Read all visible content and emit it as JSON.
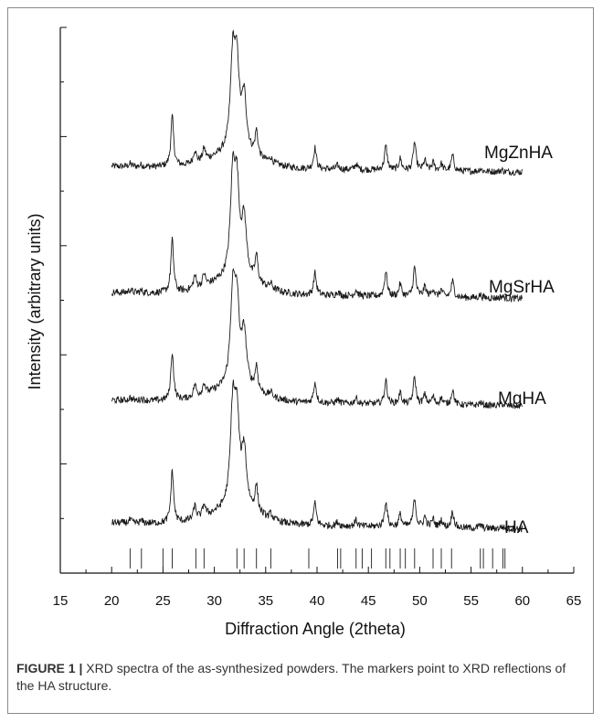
{
  "chart_data": {
    "type": "line",
    "xlabel": "Diffraction Angle (2theta)",
    "ylabel": "Intensity (arbitrary units)",
    "xlim": [
      15,
      65
    ],
    "x_ticks": [
      "15",
      "20",
      "25",
      "30",
      "35",
      "40",
      "45",
      "50",
      "55",
      "60",
      "65"
    ],
    "y_scale": "arbitrary",
    "x_range_data": [
      20,
      60
    ],
    "peaks": [
      {
        "x": 21.8,
        "h": 0.3
      },
      {
        "x": 22.9,
        "h": 0.2
      },
      {
        "x": 25.9,
        "h": 5.2
      },
      {
        "x": 28.1,
        "h": 1.3
      },
      {
        "x": 29.0,
        "h": 1.2
      },
      {
        "x": 31.8,
        "h": 9.5
      },
      {
        "x": 32.2,
        "h": 8.0
      },
      {
        "x": 32.9,
        "h": 5.6
      },
      {
        "x": 34.1,
        "h": 2.6
      },
      {
        "x": 35.5,
        "h": 0.5
      },
      {
        "x": 39.8,
        "h": 2.2
      },
      {
        "x": 42.0,
        "h": 0.4
      },
      {
        "x": 43.8,
        "h": 0.6
      },
      {
        "x": 46.7,
        "h": 2.5
      },
      {
        "x": 48.1,
        "h": 1.2
      },
      {
        "x": 49.5,
        "h": 2.9
      },
      {
        "x": 50.5,
        "h": 1.0
      },
      {
        "x": 51.3,
        "h": 0.8
      },
      {
        "x": 52.1,
        "h": 0.7
      },
      {
        "x": 53.2,
        "h": 1.6
      },
      {
        "x": 55.9,
        "h": 0.3
      },
      {
        "x": 58.0,
        "h": 0.2
      }
    ],
    "series": [
      {
        "name": "MgZnHA"
      },
      {
        "name": "MgSrHA"
      },
      {
        "name": "MgHA"
      },
      {
        "name": "HA"
      }
    ],
    "reference_markers": [
      21.8,
      22.9,
      25.0,
      25.9,
      28.2,
      29.0,
      32.2,
      32.9,
      34.1,
      35.5,
      39.2,
      42.0,
      42.3,
      43.8,
      44.4,
      45.3,
      46.7,
      47.1,
      48.1,
      48.6,
      49.5,
      51.3,
      52.1,
      53.1,
      55.9,
      56.2,
      57.1,
      58.1,
      58.3
    ]
  },
  "caption": {
    "label": "FIGURE 1 |",
    "text": " XRD spectra of the as-synthesized powders. The markers point to XRD reflections of the HA structure."
  }
}
